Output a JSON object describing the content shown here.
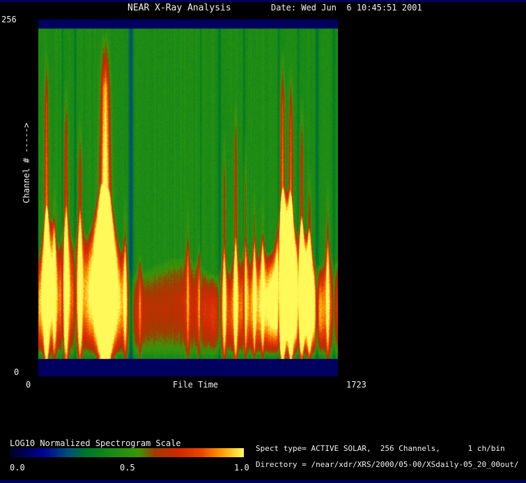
{
  "header": {
    "title": "NEAR X-Ray Analysis",
    "date_label": "Date: Wed Jun  6 10:45:51 2001"
  },
  "y_axis": {
    "label": "Channel # ----->",
    "top_tick": "256",
    "bottom_tick": "0"
  },
  "x_axis": {
    "label": "File Time",
    "left_tick": "0",
    "right_tick": "1723"
  },
  "colorbar": {
    "label": "LOG10 Normalized Spectrogram Scale",
    "ticks": [
      "0.0",
      "0.5",
      "1.0"
    ]
  },
  "footer": {
    "spect_line": "Spect type= ACTIVE SOLAR,  256 Channels,      1 ch/bin",
    "directory_line": "Directory = /near/xdr/XRS/2000/05-00/XSdaily-05_20_00out/"
  },
  "chart_data": {
    "type": "heatmap",
    "title": "NEAR X-Ray Analysis",
    "xlabel": "File Time",
    "ylabel": "Channel #",
    "x_range": [
      0,
      1723
    ],
    "y_range": [
      0,
      256
    ],
    "scale": {
      "label": "LOG10 Normalized Spectrogram Scale",
      "min": 0.0,
      "max": 1.0
    },
    "frame_color": "#000060",
    "base_level": 0.45,
    "noise": 0.035,
    "colormap": [
      [
        0.0,
        0,
        0,
        40
      ],
      [
        0.14,
        0,
        0,
        150
      ],
      [
        0.25,
        0,
        80,
        120
      ],
      [
        0.33,
        0,
        120,
        40
      ],
      [
        0.45,
        30,
        140,
        20
      ],
      [
        0.55,
        60,
        150,
        10
      ],
      [
        0.62,
        160,
        60,
        0
      ],
      [
        0.72,
        210,
        40,
        0
      ],
      [
        0.82,
        235,
        70,
        0
      ],
      [
        0.9,
        255,
        150,
        0
      ],
      [
        1.0,
        255,
        250,
        90
      ]
    ],
    "band": {
      "comment_schema": "hotspots: [file_time, width_t, extra_amp]",
      "edge": 0.7,
      "base_amp": 0.32,
      "hotspots": [
        [
          48,
          50,
          0.18
        ],
        [
          385,
          95,
          0.38
        ],
        [
          700,
          260,
          -0.05
        ],
        [
          1430,
          150,
          0.4
        ],
        [
          1560,
          70,
          0.22
        ]
      ]
    },
    "streaks_schema": "[file_time, width_t, amplitude, height_fraction]",
    "streaks": [
      [
        48,
        14,
        0.55,
        0.95
      ],
      [
        92,
        9,
        0.3,
        0.55
      ],
      [
        160,
        13,
        0.45,
        0.85
      ],
      [
        240,
        11,
        0.38,
        0.75
      ],
      [
        385,
        34,
        0.85,
        1.0
      ],
      [
        500,
        8,
        0.28,
        0.52
      ],
      [
        585,
        6,
        0.18,
        0.35
      ],
      [
        860,
        7,
        0.22,
        0.5
      ],
      [
        925,
        6,
        0.18,
        0.4
      ],
      [
        1070,
        9,
        0.32,
        0.7
      ],
      [
        1135,
        10,
        0.38,
        0.8
      ],
      [
        1190,
        9,
        0.32,
        0.7
      ],
      [
        1243,
        7,
        0.26,
        0.55
      ],
      [
        1290,
        7,
        0.22,
        0.5
      ],
      [
        1405,
        15,
        0.6,
        0.95
      ],
      [
        1453,
        13,
        0.55,
        0.9
      ],
      [
        1515,
        11,
        0.42,
        0.8
      ],
      [
        1560,
        10,
        0.34,
        0.6
      ],
      [
        1665,
        8,
        0.28,
        0.55
      ]
    ],
    "dropouts_schema": "[file_time, width_t, depth]",
    "dropouts": [
      [
        140,
        6,
        0.3
      ],
      [
        212,
        8,
        0.35
      ],
      [
        533,
        14,
        0.65
      ],
      [
        935,
        5,
        0.25
      ],
      [
        1042,
        8,
        0.4
      ],
      [
        1183,
        8,
        0.35
      ],
      [
        1383,
        6,
        0.35
      ],
      [
        1495,
        8,
        0.3
      ],
      [
        1603,
        10,
        0.45
      ],
      [
        1700,
        8,
        0.35
      ]
    ]
  }
}
